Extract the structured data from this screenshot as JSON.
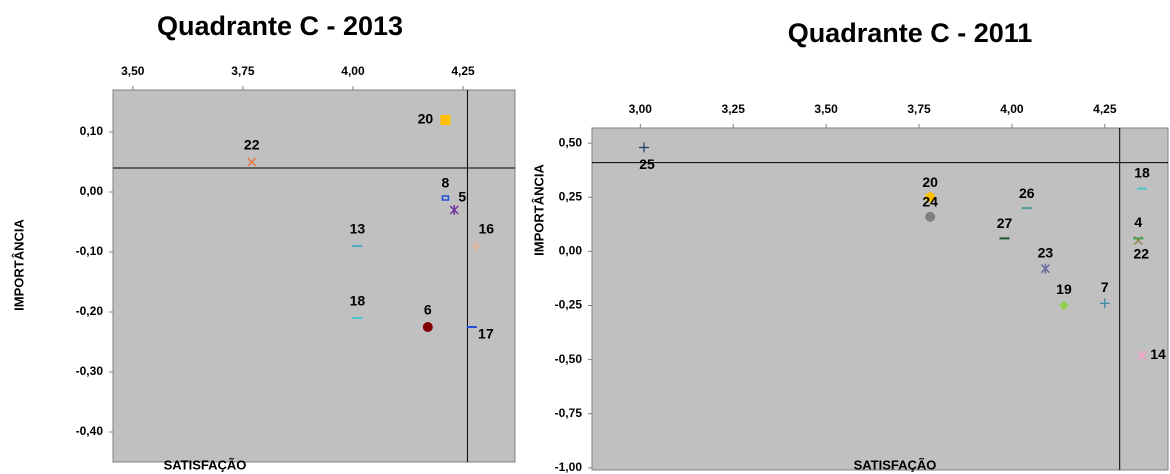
{
  "chart_data": [
    {
      "type": "scatter",
      "title": "Quadrante C - 2013",
      "x_label": "SATISFAÇÃO",
      "y_label": "IMPORTÂNCIA",
      "xlim": [
        3.455,
        4.368
      ],
      "ylim": [
        -0.45,
        0.17
      ],
      "xticks": [
        {
          "value": 3.5,
          "label": "3,50"
        },
        {
          "value": 3.75,
          "label": "3,75"
        },
        {
          "value": 4.0,
          "label": "4,00"
        },
        {
          "value": 4.25,
          "label": "4,25"
        }
      ],
      "yticks": [
        {
          "value": 0.1,
          "label": "0,10"
        },
        {
          "value": 0.0,
          "label": "0,00"
        },
        {
          "value": -0.1,
          "label": "-0,10"
        },
        {
          "value": -0.2,
          "label": "-0,20"
        },
        {
          "value": -0.3,
          "label": "-0,30"
        },
        {
          "value": -0.4,
          "label": "-0,40"
        }
      ],
      "reference_lines": {
        "x": 4.26,
        "y": 0.04
      },
      "series": [
        {
          "name": "20",
          "color": "#ffc000",
          "marker": "square",
          "x": [
            4.21
          ],
          "values": [
            0.12
          ]
        },
        {
          "name": "22",
          "color": "#e8743b",
          "marker": "x",
          "x": [
            3.77
          ],
          "values": [
            0.05
          ]
        },
        {
          "name": "8",
          "color": "#1f4fd8",
          "marker": "box",
          "x": [
            4.21
          ],
          "values": [
            -0.01
          ]
        },
        {
          "name": "5",
          "color": "#7030a0",
          "marker": "asterisk",
          "x": [
            4.23
          ],
          "values": [
            -0.03
          ]
        },
        {
          "name": "16",
          "color": "#f4b183",
          "marker": "plus",
          "x": [
            4.28
          ],
          "values": [
            -0.09
          ]
        },
        {
          "name": "13",
          "color": "#4bacc6",
          "marker": "dash",
          "x": [
            4.01
          ],
          "values": [
            -0.09
          ]
        },
        {
          "name": "18",
          "color": "#4bc6c6",
          "marker": "dash",
          "x": [
            4.01
          ],
          "values": [
            -0.21
          ]
        },
        {
          "name": "6",
          "color": "#800000",
          "marker": "circle",
          "x": [
            4.17
          ],
          "values": [
            -0.225
          ]
        },
        {
          "name": "17",
          "color": "#1f4fd8",
          "marker": "dash",
          "x": [
            4.27
          ],
          "values": [
            -0.225
          ]
        }
      ]
    },
    {
      "type": "scatter",
      "title": "Quadrante C - 2011",
      "x_label": "SATISFAÇÃO",
      "y_label": "IMPORTÂNCIA",
      "xlim": [
        2.87,
        4.42
      ],
      "ylim": [
        -1.01,
        0.57
      ],
      "xticks": [
        {
          "value": 3.0,
          "label": "3,00"
        },
        {
          "value": 3.25,
          "label": "3,25"
        },
        {
          "value": 3.5,
          "label": "3,50"
        },
        {
          "value": 3.75,
          "label": "3,75"
        },
        {
          "value": 4.0,
          "label": "4,00"
        },
        {
          "value": 4.25,
          "label": "4,25"
        }
      ],
      "yticks": [
        {
          "value": 0.5,
          "label": "0,50"
        },
        {
          "value": 0.25,
          "label": "0,25"
        },
        {
          "value": 0.0,
          "label": "0,00"
        },
        {
          "value": -0.25,
          "label": "-0,25"
        },
        {
          "value": -0.5,
          "label": "-0,50"
        },
        {
          "value": -0.75,
          "label": "-0,75"
        },
        {
          "value": -1.0,
          "label": "-1,00"
        }
      ],
      "reference_lines": {
        "x": 4.29,
        "y": 0.41
      },
      "series": [
        {
          "name": "25",
          "color": "#1f3864",
          "marker": "plus",
          "x": [
            3.01
          ],
          "values": [
            0.48
          ]
        },
        {
          "name": "20",
          "color": "#ffc000",
          "marker": "circle",
          "x": [
            3.78
          ],
          "values": [
            0.25
          ]
        },
        {
          "name": "24",
          "color": "#808080",
          "marker": "circle",
          "x": [
            3.78
          ],
          "values": [
            0.16
          ]
        },
        {
          "name": "26",
          "color": "#4f9a94",
          "marker": "dash",
          "x": [
            4.04
          ],
          "values": [
            0.2
          ]
        },
        {
          "name": "27",
          "color": "#1e5631",
          "marker": "dash",
          "x": [
            3.98
          ],
          "values": [
            0.06
          ]
        },
        {
          "name": "23",
          "color": "#6c6c9c",
          "marker": "asterisk",
          "x": [
            4.09
          ],
          "values": [
            -0.08
          ]
        },
        {
          "name": "19",
          "color": "#92d050",
          "marker": "diamond",
          "x": [
            4.14
          ],
          "values": [
            -0.25
          ]
        },
        {
          "name": "7",
          "color": "#31859c",
          "marker": "plus",
          "x": [
            4.25
          ],
          "values": [
            -0.24
          ]
        },
        {
          "name": "18",
          "color": "#4bc6c6",
          "marker": "dash",
          "x": [
            4.35
          ],
          "values": [
            0.29
          ]
        },
        {
          "name": "4",
          "color": "#00b050",
          "marker": "dash",
          "x": [
            4.34
          ],
          "values": [
            0.06
          ]
        },
        {
          "name": "22",
          "color": "#948a54",
          "marker": "x",
          "x": [
            4.34
          ],
          "values": [
            0.05
          ]
        },
        {
          "name": "14",
          "color": "#ff99cc",
          "marker": "x",
          "x": [
            4.35
          ],
          "values": [
            -0.48
          ]
        }
      ]
    }
  ]
}
